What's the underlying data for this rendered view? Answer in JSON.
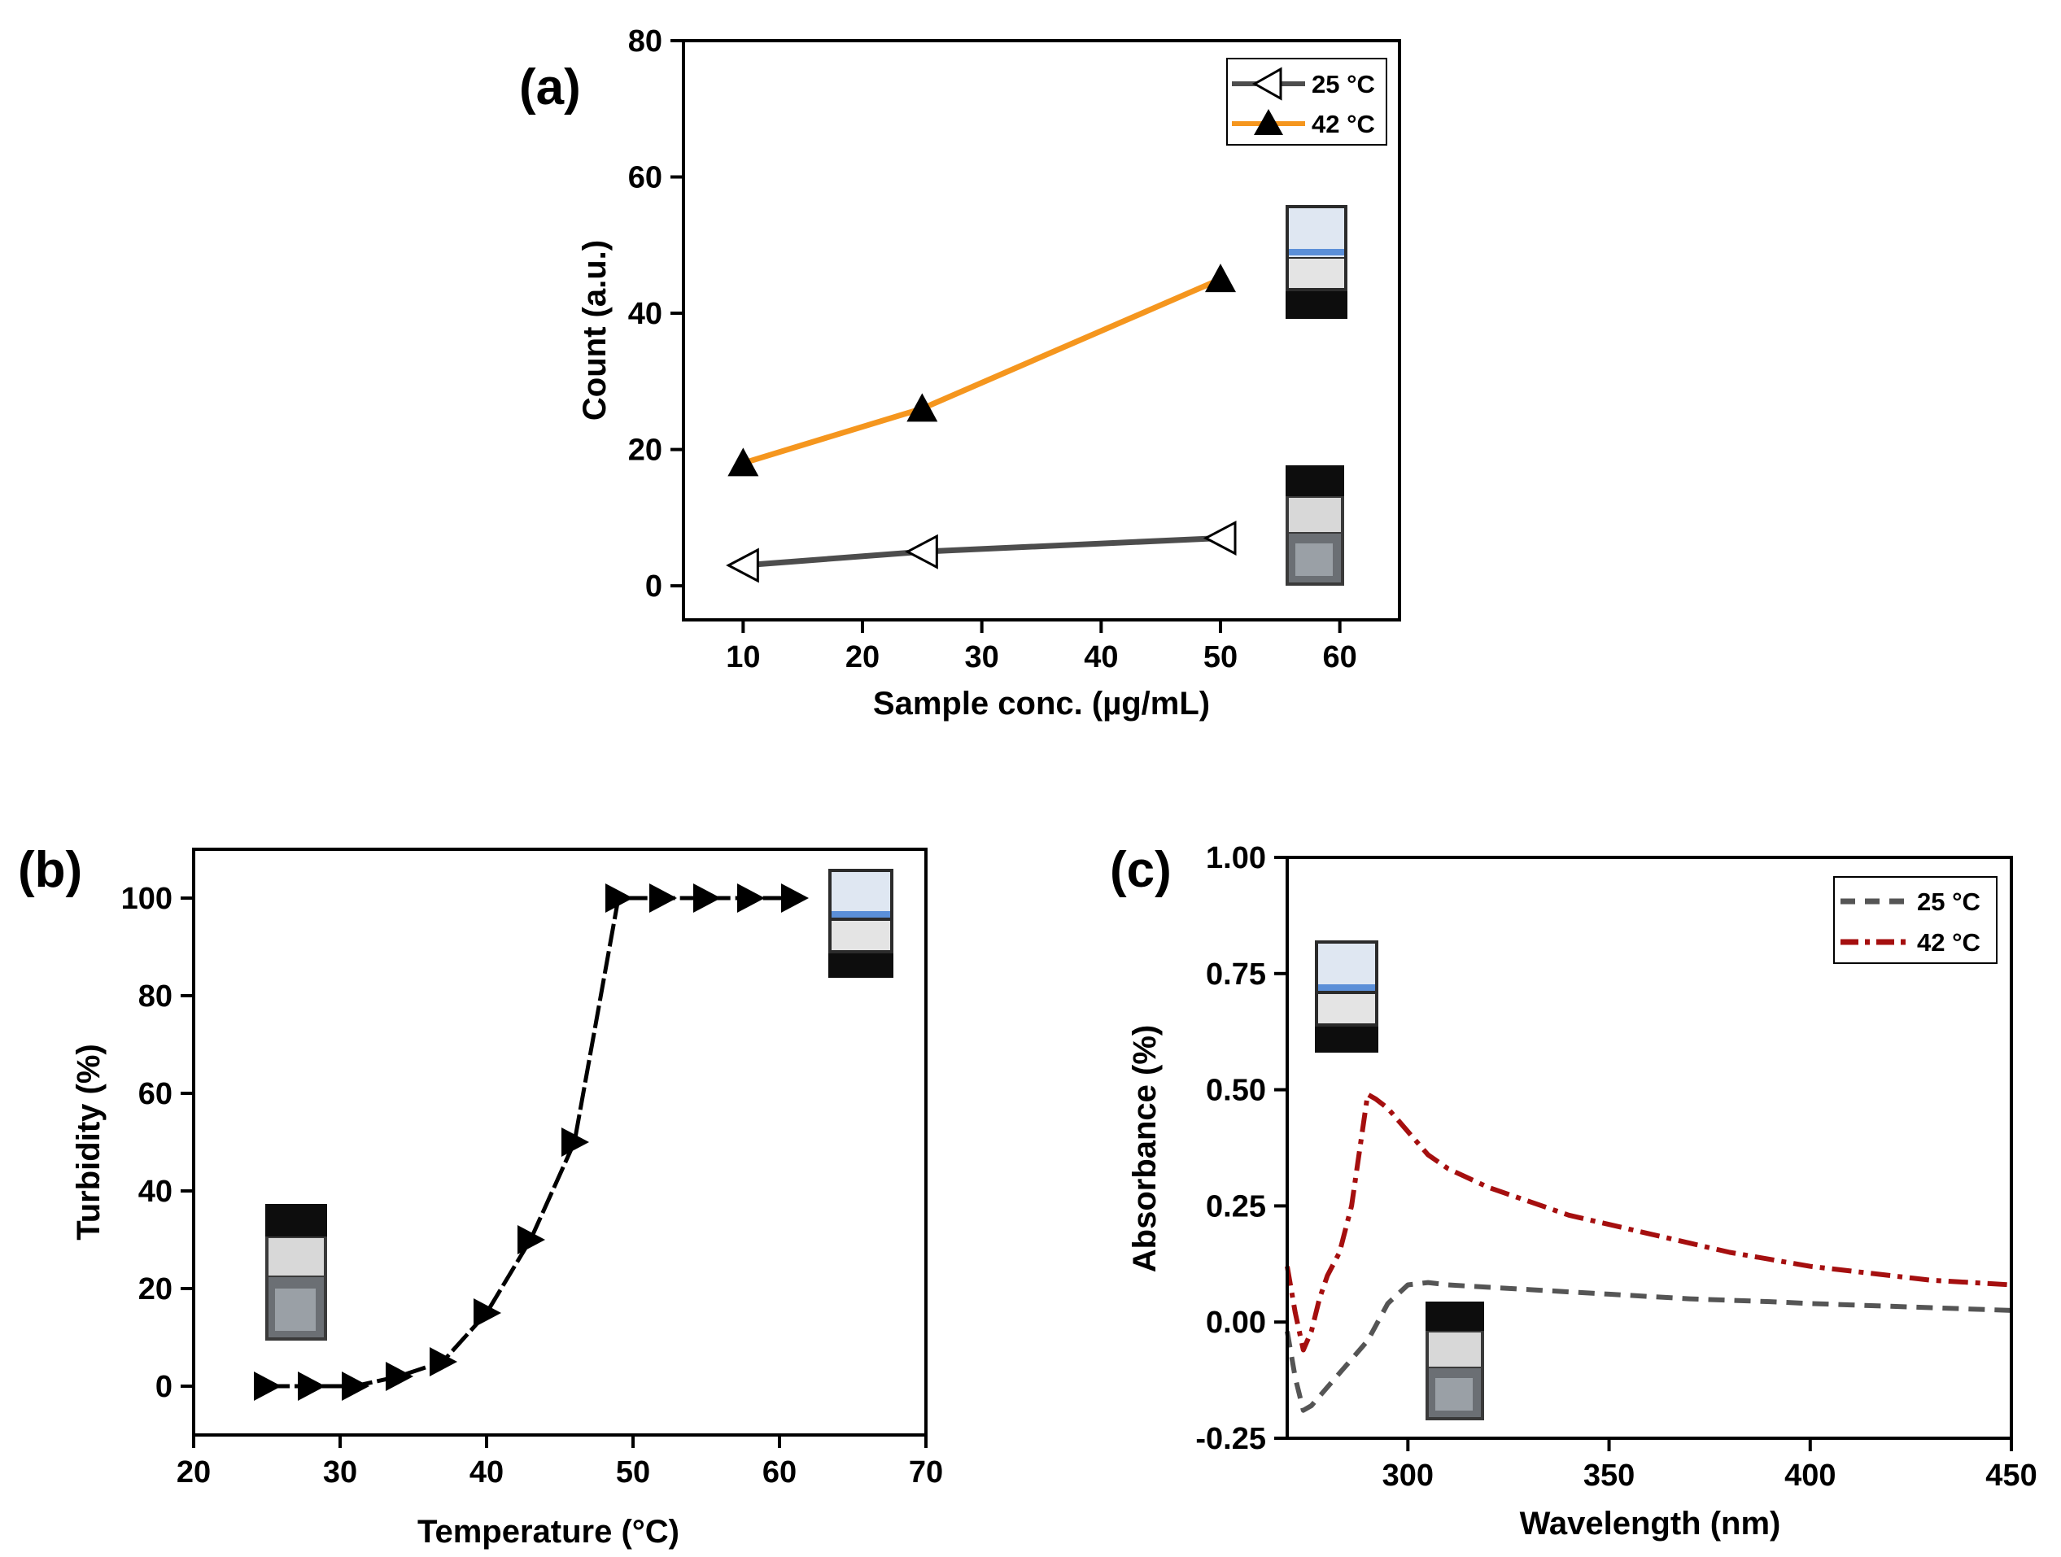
{
  "chart_data": [
    {
      "panel": "(a)",
      "type": "line",
      "xlabel": "Sample conc. (µg/mL)",
      "ylabel": "Count (a.u.)",
      "xlim": [
        5,
        65
      ],
      "ylim": [
        -5,
        80
      ],
      "xticks": [
        "10",
        "20",
        "30",
        "40",
        "50",
        "60"
      ],
      "yticks": [
        "0",
        "20",
        "40",
        "60",
        "80"
      ],
      "legend_position": "top-right",
      "grid": false,
      "series": [
        {
          "name": "25 °C",
          "color": "#4d4d4d",
          "marker": "open-left-triangle",
          "x": [
            10,
            25,
            50
          ],
          "y": [
            3,
            5,
            7
          ]
        },
        {
          "name": "42 °C",
          "color": "#f5961e",
          "marker": "filled-up-triangle",
          "x": [
            10,
            25,
            50
          ],
          "y": [
            18,
            26,
            45
          ]
        }
      ]
    },
    {
      "panel": "(b)",
      "type": "line",
      "xlabel": "Temperature (°C)",
      "ylabel": "Turbidity (%)",
      "xlim": [
        20,
        70
      ],
      "ylim": [
        -10,
        110
      ],
      "xticks": [
        "20",
        "30",
        "40",
        "50",
        "60",
        "70"
      ],
      "yticks": [
        "0",
        "20",
        "40",
        "60",
        "80",
        "100"
      ],
      "grid": false,
      "series": [
        {
          "color": "#000000",
          "marker": "filled-right-triangle",
          "x": [
            25,
            28,
            31,
            34,
            37,
            40,
            43,
            46,
            49,
            52,
            55,
            58,
            61
          ],
          "y": [
            0,
            0,
            0,
            2,
            5,
            15,
            30,
            50,
            100,
            100,
            100,
            100,
            100
          ]
        }
      ]
    },
    {
      "panel": "(c)",
      "type": "line",
      "xlabel": "Wavelength (nm)",
      "ylabel": "Absorbance (%)",
      "xlim": [
        270,
        450
      ],
      "ylim": [
        -0.25,
        1.0
      ],
      "xticks": [
        "300",
        "350",
        "400",
        "450"
      ],
      "yticks": [
        "-0.25",
        "0.00",
        "0.25",
        "0.50",
        "0.75",
        "1.00"
      ],
      "legend_position": "top-right",
      "grid": false,
      "series": [
        {
          "name": "25 °C",
          "color": "#555555",
          "dash": "dashed",
          "x": [
            270,
            272,
            274,
            276,
            280,
            285,
            290,
            295,
            300,
            305,
            310,
            320,
            330,
            340,
            350,
            360,
            370,
            380,
            390,
            400,
            410,
            420,
            430,
            440,
            450
          ],
          "y": [
            -0.02,
            -0.12,
            -0.19,
            -0.18,
            -0.14,
            -0.09,
            -0.04,
            0.04,
            0.08,
            0.085,
            0.08,
            0.075,
            0.07,
            0.065,
            0.06,
            0.055,
            0.05,
            0.047,
            0.044,
            0.04,
            0.037,
            0.034,
            0.031,
            0.028,
            0.025
          ]
        },
        {
          "name": "42 °C",
          "color": "#a50f0f",
          "dash": "dash-dot",
          "x": [
            270,
            272,
            274,
            276,
            278,
            280,
            283,
            286,
            290,
            292,
            295,
            300,
            305,
            310,
            320,
            330,
            340,
            350,
            360,
            370,
            380,
            390,
            400,
            410,
            420,
            430,
            440,
            450
          ],
          "y": [
            0.12,
            0.02,
            -0.06,
            -0.02,
            0.05,
            0.1,
            0.15,
            0.25,
            0.49,
            0.48,
            0.46,
            0.41,
            0.36,
            0.33,
            0.29,
            0.26,
            0.23,
            0.21,
            0.19,
            0.17,
            0.15,
            0.135,
            0.12,
            0.11,
            0.1,
            0.09,
            0.085,
            0.08
          ]
        }
      ]
    }
  ]
}
